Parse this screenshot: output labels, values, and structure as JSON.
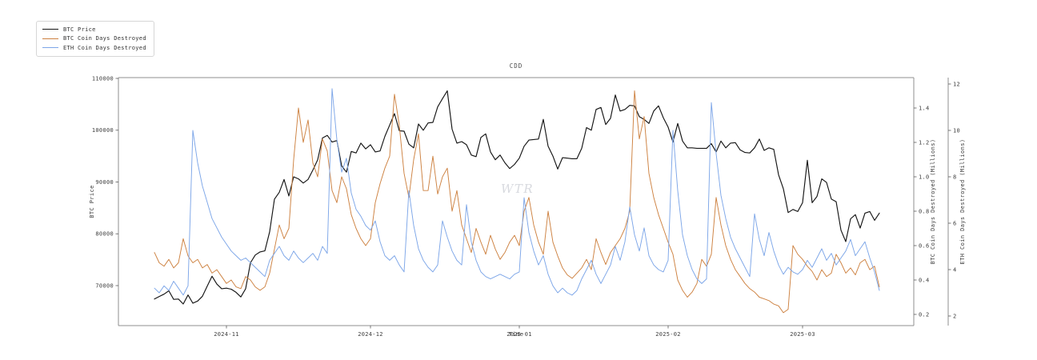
{
  "figure": {
    "title": "CDD",
    "xlabel": "Time",
    "watermark": "WTR"
  },
  "legend": {
    "items": [
      {
        "label": "BTC Price",
        "color": "#151515"
      },
      {
        "label": "BTC Coin Days Destroyed",
        "color": "#cd8140"
      },
      {
        "label": "ETH Coin Days Destroyed",
        "color": "#7da6e8"
      }
    ]
  },
  "chart_data": {
    "type": "line",
    "title": "CDD",
    "xlabel": "Time",
    "x_start_date": "2024-10-17",
    "x_unit": "days",
    "x_ticks": [
      {
        "label": "2024-11",
        "day": 15
      },
      {
        "label": "2024-12",
        "day": 45
      },
      {
        "label": "2025-01",
        "day": 76
      },
      {
        "label": "2025-02",
        "day": 107
      },
      {
        "label": "2025-03",
        "day": 135
      }
    ],
    "axes": {
      "left": {
        "label": "BTC Price",
        "ticks": [
          70000,
          80000,
          90000,
          100000,
          110000
        ],
        "range": [
          63000,
          110400
        ]
      },
      "right_btc_cdd": {
        "label": "BTC Coin Days Destroyed (Millions)",
        "ticks": [
          0.2,
          0.4,
          0.6,
          0.8,
          1.0,
          1.2,
          1.4
        ],
        "range": [
          0.14,
          1.57
        ]
      },
      "right_eth_cdd": {
        "label": "ETH Coin Days Destroyed (Millions)",
        "ticks": [
          2,
          4,
          6,
          8,
          10,
          12
        ],
        "range": [
          1.6,
          12.3
        ]
      }
    },
    "series": [
      {
        "name": "BTC Price",
        "axis": "left",
        "color": "#151515",
        "width": 1.15,
        "values": [
          67400,
          67900,
          68350,
          69000,
          67350,
          67400,
          66450,
          68200,
          66600,
          67020,
          67950,
          69900,
          71800,
          70300,
          69400,
          69500,
          69300,
          68700,
          67800,
          69400,
          74400,
          75900,
          76500,
          76700,
          80400,
          86700,
          88000,
          90500,
          87300,
          91000,
          90600,
          89800,
          90500,
          92300,
          94300,
          98500,
          99000,
          97700,
          98000,
          93100,
          91900,
          95900,
          95600,
          97500,
          96400,
          97200,
          95800,
          96000,
          98800,
          101000,
          103200,
          99900,
          99800,
          97300,
          96600,
          101200,
          100000,
          101400,
          101500,
          104500,
          106100,
          107600,
          100200,
          97500,
          97800,
          97200,
          95200,
          94900,
          98600,
          99300,
          95800,
          94300,
          95200,
          93700,
          92600,
          93400,
          94600,
          96900,
          98100,
          98200,
          98300,
          102100,
          96900,
          95000,
          92500,
          94700,
          94600,
          94500,
          94500,
          96500,
          100500,
          100000,
          104000,
          104400,
          101100,
          102300,
          106800,
          103700,
          104000,
          104800,
          104700,
          102600,
          102100,
          101300,
          103700,
          104700,
          102400,
          100600,
          97700,
          101300,
          97900,
          96600,
          96600,
          96500,
          96500,
          96500,
          97400,
          95800,
          97900,
          96600,
          97500,
          97600,
          96200,
          95700,
          95600,
          96600,
          98300,
          96100,
          96600,
          96300,
          91400,
          88700,
          84100,
          84700,
          84300,
          86000,
          94200,
          86000,
          87200,
          90600,
          89900,
          86700,
          86200,
          80700,
          78500,
          82900,
          83700,
          81100,
          84000,
          84300,
          82600,
          84000
        ]
      },
      {
        "name": "BTC Coin Days Destroyed",
        "axis": "right_btc_cdd",
        "color": "#cd8140",
        "width": 0.95,
        "values": [
          0.56,
          0.5,
          0.48,
          0.52,
          0.47,
          0.5,
          0.64,
          0.54,
          0.5,
          0.52,
          0.47,
          0.49,
          0.44,
          0.46,
          0.42,
          0.38,
          0.4,
          0.36,
          0.35,
          0.42,
          0.4,
          0.36,
          0.34,
          0.36,
          0.44,
          0.58,
          0.72,
          0.64,
          0.7,
          1.1,
          1.4,
          1.2,
          1.33,
          1.08,
          1.0,
          1.22,
          1.15,
          0.92,
          0.85,
          1.0,
          0.93,
          0.78,
          0.7,
          0.64,
          0.6,
          0.64,
          0.85,
          0.96,
          1.05,
          1.12,
          1.48,
          1.3,
          1.02,
          0.88,
          1.1,
          1.25,
          0.92,
          0.92,
          1.12,
          0.9,
          1.0,
          1.05,
          0.8,
          0.92,
          0.72,
          0.64,
          0.56,
          0.7,
          0.62,
          0.55,
          0.66,
          0.58,
          0.52,
          0.56,
          0.62,
          0.66,
          0.6,
          0.8,
          0.88,
          0.72,
          0.62,
          0.55,
          0.8,
          0.62,
          0.54,
          0.47,
          0.43,
          0.41,
          0.44,
          0.47,
          0.52,
          0.46,
          0.64,
          0.56,
          0.49,
          0.56,
          0.6,
          0.64,
          0.7,
          0.8,
          1.5,
          1.22,
          1.35,
          1.02,
          0.88,
          0.78,
          0.7,
          0.62,
          0.55,
          0.4,
          0.34,
          0.3,
          0.33,
          0.38,
          0.52,
          0.48,
          0.55,
          0.88,
          0.72,
          0.6,
          0.52,
          0.46,
          0.42,
          0.38,
          0.35,
          0.33,
          0.3,
          0.29,
          0.28,
          0.26,
          0.25,
          0.21,
          0.23,
          0.6,
          0.55,
          0.52,
          0.48,
          0.45,
          0.4,
          0.46,
          0.42,
          0.44,
          0.55,
          0.5,
          0.44,
          0.47,
          0.43,
          0.5,
          0.52,
          0.46,
          0.48,
          0.36
        ]
      },
      {
        "name": "ETH Coin Days Destroyed",
        "axis": "right_eth_cdd",
        "color": "#7da6e8",
        "width": 0.95,
        "values": [
          3.2,
          3.0,
          3.3,
          3.1,
          3.5,
          3.2,
          2.9,
          3.3,
          10.0,
          8.6,
          7.6,
          6.9,
          6.2,
          5.8,
          5.4,
          5.1,
          4.8,
          4.6,
          4.4,
          4.5,
          4.3,
          4.1,
          3.9,
          3.7,
          4.4,
          4.7,
          5.0,
          4.6,
          4.4,
          4.8,
          4.5,
          4.3,
          4.5,
          4.7,
          4.4,
          5.0,
          4.7,
          11.8,
          9.6,
          8.2,
          8.8,
          7.3,
          6.6,
          6.3,
          5.9,
          5.7,
          6.1,
          5.2,
          4.6,
          4.4,
          4.6,
          4.2,
          3.9,
          7.4,
          5.9,
          4.9,
          4.4,
          4.1,
          3.9,
          4.2,
          6.1,
          5.4,
          4.8,
          4.4,
          4.2,
          6.8,
          5.2,
          4.4,
          3.9,
          3.7,
          3.6,
          3.7,
          3.8,
          3.7,
          3.6,
          3.8,
          3.9,
          7.1,
          5.6,
          4.8,
          4.2,
          4.6,
          3.8,
          3.3,
          3.0,
          3.2,
          3.0,
          2.9,
          3.1,
          3.6,
          4.0,
          4.4,
          3.8,
          3.4,
          3.8,
          4.2,
          5.0,
          4.4,
          5.2,
          6.7,
          5.5,
          4.8,
          5.8,
          4.6,
          4.2,
          4.0,
          3.9,
          4.4,
          10.0,
          7.4,
          5.5,
          4.6,
          4.0,
          3.6,
          3.4,
          3.6,
          11.2,
          9.0,
          7.2,
          6.2,
          5.4,
          4.9,
          4.5,
          4.1,
          3.7,
          6.4,
          5.3,
          4.6,
          5.6,
          4.8,
          4.2,
          3.8,
          4.1,
          3.9,
          3.8,
          4.0,
          4.4,
          4.1,
          4.5,
          4.9,
          4.4,
          4.7,
          4.2,
          4.5,
          4.8,
          5.3,
          4.6,
          4.9,
          5.2,
          4.5,
          3.9,
          3.1
        ]
      }
    ]
  }
}
